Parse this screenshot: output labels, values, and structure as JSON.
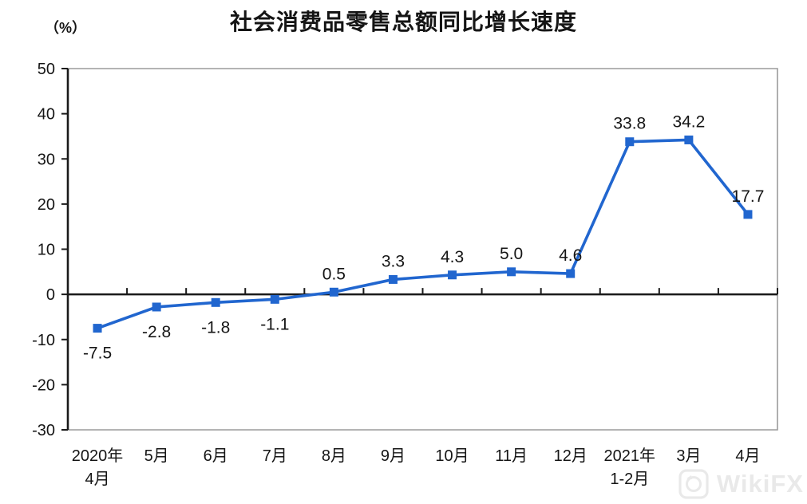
{
  "chart_data": {
    "type": "line",
    "title": "社会消费品零售总额同比增长速度",
    "unit": "（%）",
    "x_categories": [
      "2020年\n4月",
      "5月",
      "6月",
      "7月",
      "8月",
      "9月",
      "10月",
      "11月",
      "12月",
      "2021年\n1-2月",
      "3月",
      "4月"
    ],
    "values": [
      -7.5,
      -2.8,
      -1.8,
      -1.1,
      0.5,
      3.3,
      4.3,
      5.0,
      4.6,
      33.8,
      34.2,
      17.7
    ],
    "data_labels": [
      "-7.5",
      "-2.8",
      "-1.8",
      "-1.1",
      "0.5",
      "3.3",
      "4.3",
      "5.0",
      "4.6",
      "33.8",
      "34.2",
      "17.7"
    ],
    "ylim": [
      -30,
      50
    ],
    "ytick_interval": 10,
    "ytick_labels": [
      "50",
      "40",
      "30",
      "20",
      "10",
      "0",
      "-10",
      "-20",
      "-30"
    ],
    "grid": false,
    "legend": null,
    "line_color": "#2166cf",
    "axis_color": "#1a1a1a",
    "border_color": "#9b9b9b",
    "text_color": "#151515"
  },
  "watermark": {
    "text": "WikiFX"
  }
}
